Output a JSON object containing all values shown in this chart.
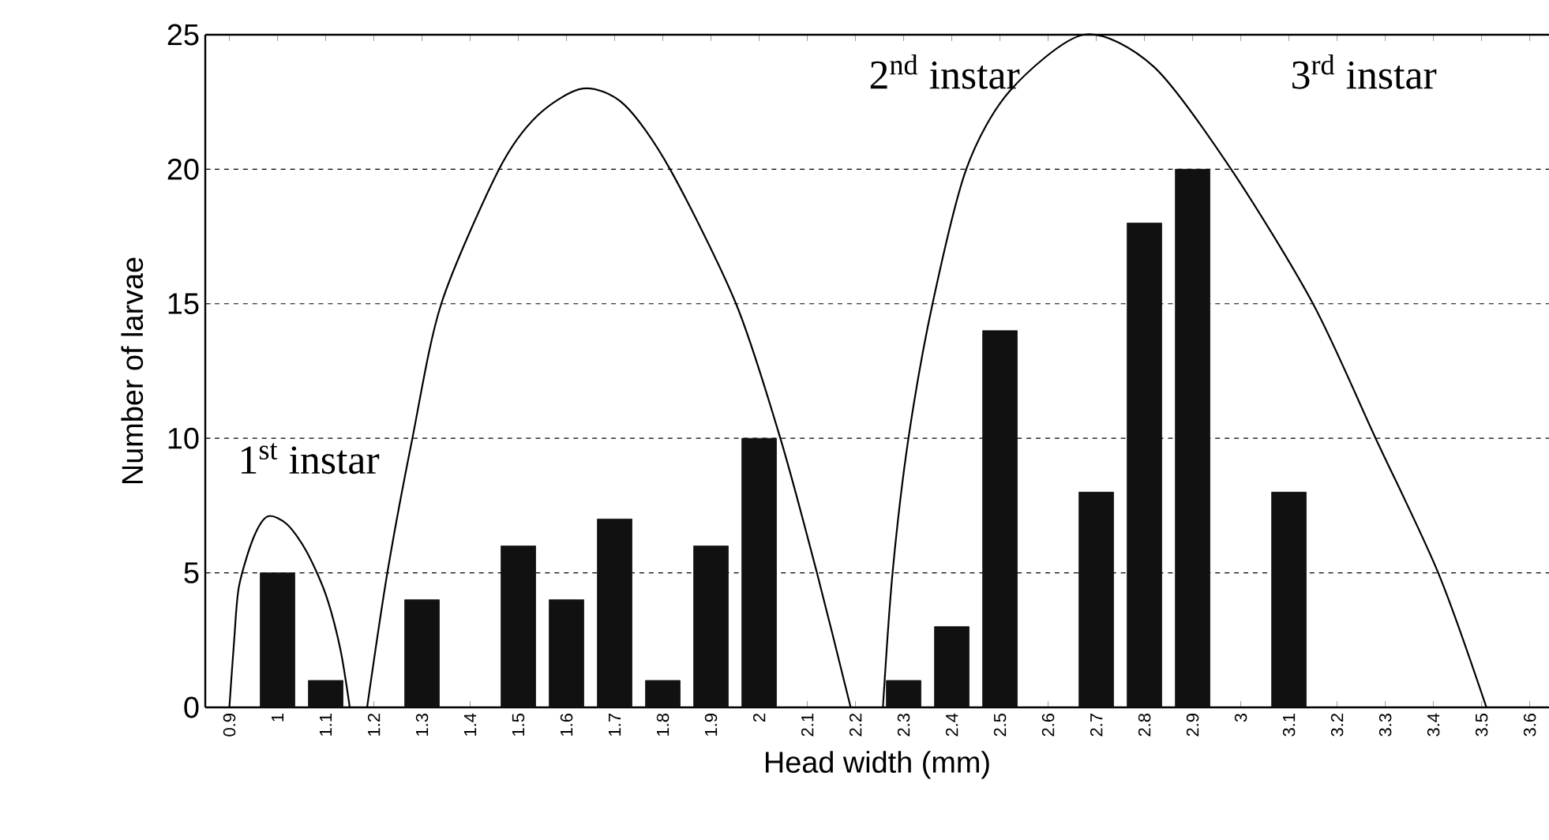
{
  "chart_data": {
    "type": "bar",
    "xlabel": "Head width (mm)",
    "ylabel": "Number of larvae",
    "xlim": [
      0.85,
      3.64
    ],
    "ylim": [
      0,
      25
    ],
    "xticks": [
      0.9,
      1,
      1.1,
      1.2,
      1.3,
      1.4,
      1.5,
      1.6,
      1.7,
      1.8,
      1.9,
      2,
      2.1,
      2.2,
      2.3,
      2.4,
      2.5,
      2.6,
      2.7,
      2.8,
      2.9,
      3,
      3.1,
      3.2,
      3.3,
      3.4,
      3.5,
      3.6
    ],
    "yticks": [
      0,
      5,
      10,
      15,
      20,
      25
    ],
    "grid": "y",
    "series": [
      {
        "color": "#111111",
        "x": [
          1,
          1.1,
          1.3,
          1.5,
          1.6,
          1.7,
          1.8,
          1.9,
          2,
          2.3,
          2.4,
          2.5,
          2.7,
          2.8,
          2.9,
          3.1
        ],
        "values": [
          5,
          1,
          4,
          6,
          4,
          7,
          1,
          6,
          10,
          1,
          3,
          14,
          8,
          18,
          20,
          8
        ]
      },
      {
        "type": "line",
        "color": "#000000",
        "x": [
          0.9,
          0.91,
          0.92,
          0.95,
          0.98,
          1.02,
          1.06,
          1.1,
          1.13,
          1.15
        ],
        "values": [
          0,
          2.5,
          4.5,
          6.3,
          7.1,
          6.8,
          5.8,
          4.2,
          2.2,
          0
        ]
      },
      {
        "type": "line",
        "color": "#000000",
        "x": [
          1.186,
          1.228,
          1.28,
          1.34,
          1.46,
          1.54,
          1.634,
          1.72,
          1.815,
          1.952,
          2.044,
          2.12,
          2.19
        ],
        "values": [
          0,
          5,
          10,
          15,
          20,
          22,
          23,
          22.4,
          20,
          15,
          10,
          5,
          0
        ]
      },
      {
        "type": "line",
        "color": "#000000",
        "x": [
          2.257,
          2.277,
          2.31,
          2.36,
          2.43,
          2.52,
          2.674,
          2.82,
          2.98,
          3.15,
          3.28,
          3.41,
          3.51
        ],
        "values": [
          0,
          5,
          10,
          15,
          20,
          22.9,
          25,
          23.8,
          20,
          15,
          10,
          5,
          0
        ]
      }
    ],
    "annotations": [
      "1$^{st}$ instar",
      "2$^{nd}$ instar",
      "3$^{rd}$ instar"
    ]
  }
}
